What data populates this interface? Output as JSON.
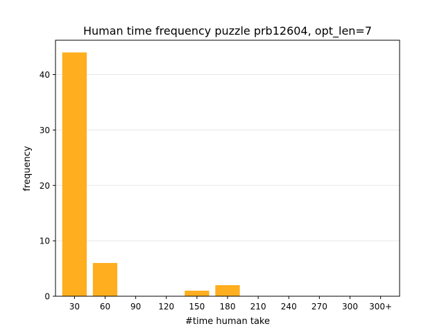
{
  "chart_data": {
    "type": "bar",
    "title": "Human time frequency puzzle prb12604, opt_len=7",
    "xlabel": "#time human take",
    "ylabel": "frequency",
    "categories": [
      "30",
      "60",
      "90",
      "120",
      "150",
      "180",
      "210",
      "240",
      "270",
      "300",
      "300+"
    ],
    "values": [
      44,
      6,
      0,
      0,
      1,
      2,
      0,
      0,
      0,
      0,
      0
    ],
    "ylim": [
      0,
      46.2
    ],
    "yticks": [
      0,
      10,
      20,
      30,
      40
    ],
    "grid": "horizontal",
    "bar_color": "#feae1e",
    "grid_color": "#e6e6e6"
  }
}
